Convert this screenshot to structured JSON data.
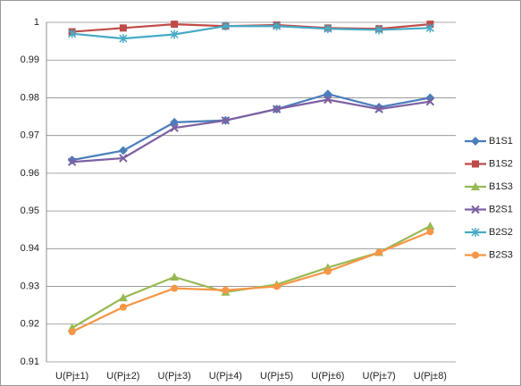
{
  "chart_data": {
    "type": "line",
    "categories": [
      "U(Pj±1)",
      "U(Pj±2)",
      "U(Pj±3)",
      "U(Pj±4)",
      "U(Pj±5)",
      "U(Pj±6)",
      "U(Pj±7)",
      "U(Pj±8)"
    ],
    "series": [
      {
        "name": "B1S1",
        "color": "#4a7ebb",
        "marker": "diamond",
        "values": [
          0.9635,
          0.966,
          0.9735,
          0.974,
          0.977,
          0.981,
          0.9775,
          0.98
        ]
      },
      {
        "name": "B1S2",
        "color": "#be4b48",
        "marker": "square",
        "values": [
          0.9975,
          0.9985,
          0.9995,
          0.999,
          0.9993,
          0.9985,
          0.9983,
          0.9995
        ]
      },
      {
        "name": "B1S3",
        "color": "#98b954",
        "marker": "triangle",
        "values": [
          0.919,
          0.927,
          0.9325,
          0.9285,
          0.9305,
          0.935,
          0.939,
          0.946
        ]
      },
      {
        "name": "B2S1",
        "color": "#7d60a0",
        "marker": "x",
        "values": [
          0.963,
          0.964,
          0.972,
          0.974,
          0.977,
          0.9795,
          0.977,
          0.979
        ]
      },
      {
        "name": "B2S2",
        "color": "#46aac5",
        "marker": "star",
        "values": [
          0.997,
          0.9957,
          0.9968,
          0.999,
          0.999,
          0.9983,
          0.998,
          0.9985
        ]
      },
      {
        "name": "B2S3",
        "color": "#f79646",
        "marker": "circle",
        "values": [
          0.918,
          0.9245,
          0.9295,
          0.929,
          0.93,
          0.934,
          0.939,
          0.9445
        ]
      }
    ],
    "ylim": [
      0.91,
      1
    ],
    "yticks": [
      0.91,
      0.92,
      0.93,
      0.94,
      0.95,
      0.96,
      0.97,
      0.98,
      0.99,
      1
    ],
    "grid": true,
    "legend": "right"
  }
}
